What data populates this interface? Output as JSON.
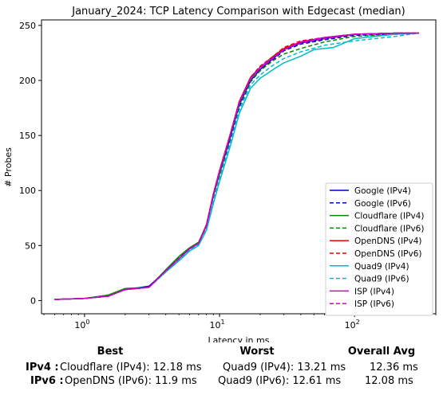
{
  "chart_data": {
    "type": "line",
    "title": "January_2024: TCP Latency Comparison with Edgecast (median)",
    "xlabel": "Latency in ms",
    "ylabel": "# Probes",
    "xscale": "log",
    "xlim": [
      0.48,
      400
    ],
    "ylim": [
      -12,
      255
    ],
    "yticks": [
      0,
      50,
      100,
      150,
      200,
      250
    ],
    "xticks": [
      {
        "value": 1,
        "base": "10",
        "exp": "0"
      },
      {
        "value": 10,
        "base": "10",
        "exp": "1"
      },
      {
        "value": 100,
        "base": "10",
        "exp": "2"
      }
    ],
    "grid": false,
    "legend_position": "lower right",
    "series": [
      {
        "name": "Google (IPv4)",
        "color": "#0000cc",
        "dash": false,
        "points": [
          [
            0.6,
            1
          ],
          [
            1.0,
            2
          ],
          [
            1.5,
            4
          ],
          [
            2.0,
            10
          ],
          [
            3.0,
            13
          ],
          [
            4.0,
            27
          ],
          [
            5.0,
            38
          ],
          [
            6.0,
            47
          ],
          [
            7.0,
            52
          ],
          [
            8.0,
            68
          ],
          [
            9.0,
            95
          ],
          [
            10.0,
            115
          ],
          [
            12.0,
            148
          ],
          [
            14.0,
            178
          ],
          [
            17.0,
            200
          ],
          [
            20.0,
            210
          ],
          [
            25.0,
            220
          ],
          [
            30.0,
            228
          ],
          [
            40.0,
            234
          ],
          [
            60.0,
            238
          ],
          [
            100.0,
            242
          ],
          [
            200.0,
            243
          ],
          [
            300.0,
            243
          ]
        ]
      },
      {
        "name": "Google (IPv6)",
        "color": "#0000cc",
        "dash": true,
        "points": [
          [
            0.6,
            1
          ],
          [
            1.0,
            2
          ],
          [
            1.5,
            4
          ],
          [
            2.0,
            10
          ],
          [
            3.0,
            12
          ],
          [
            4.0,
            26
          ],
          [
            5.0,
            37
          ],
          [
            6.0,
            46
          ],
          [
            7.0,
            51
          ],
          [
            8.0,
            67
          ],
          [
            9.0,
            93
          ],
          [
            10.0,
            113
          ],
          [
            12.0,
            146
          ],
          [
            14.0,
            176
          ],
          [
            17.0,
            199
          ],
          [
            20.0,
            209
          ],
          [
            25.0,
            219
          ],
          [
            30.0,
            227
          ],
          [
            40.0,
            233
          ],
          [
            60.0,
            237
          ],
          [
            100.0,
            241
          ],
          [
            200.0,
            242
          ],
          [
            300.0,
            243
          ]
        ]
      },
      {
        "name": "Cloudflare (IPv4)",
        "color": "#008800",
        "dash": false,
        "points": [
          [
            0.6,
            1
          ],
          [
            1.0,
            2
          ],
          [
            1.5,
            5
          ],
          [
            2.0,
            11
          ],
          [
            3.0,
            12
          ],
          [
            4.0,
            28
          ],
          [
            5.0,
            40
          ],
          [
            6.0,
            48
          ],
          [
            7.0,
            53
          ],
          [
            8.0,
            69
          ],
          [
            9.0,
            96
          ],
          [
            10.0,
            116
          ],
          [
            12.0,
            150
          ],
          [
            14.0,
            180
          ],
          [
            17.0,
            202
          ],
          [
            20.0,
            212
          ],
          [
            25.0,
            222
          ],
          [
            30.0,
            229
          ],
          [
            40.0,
            235
          ],
          [
            60.0,
            239
          ],
          [
            100.0,
            242
          ],
          [
            200.0,
            243
          ],
          [
            300.0,
            243
          ]
        ]
      },
      {
        "name": "Cloudflare (IPv6)",
        "color": "#008800",
        "dash": true,
        "points": [
          [
            0.6,
            1
          ],
          [
            1.0,
            2
          ],
          [
            1.5,
            5
          ],
          [
            2.0,
            10
          ],
          [
            3.0,
            12
          ],
          [
            4.0,
            27
          ],
          [
            5.0,
            39
          ],
          [
            6.0,
            47
          ],
          [
            7.0,
            52
          ],
          [
            8.0,
            68
          ],
          [
            9.0,
            95
          ],
          [
            10.0,
            115
          ],
          [
            12.0,
            149
          ],
          [
            14.0,
            178
          ],
          [
            17.0,
            200
          ],
          [
            20.0,
            209
          ],
          [
            25.0,
            218
          ],
          [
            30.0,
            224
          ],
          [
            40.0,
            229
          ],
          [
            60.0,
            235
          ],
          [
            100.0,
            240
          ],
          [
            200.0,
            242
          ],
          [
            300.0,
            243
          ]
        ]
      },
      {
        "name": "OpenDNS (IPv4)",
        "color": "#ee0000",
        "dash": false,
        "points": [
          [
            0.6,
            1
          ],
          [
            1.0,
            2
          ],
          [
            1.5,
            4
          ],
          [
            2.0,
            10
          ],
          [
            3.0,
            12
          ],
          [
            4.0,
            27
          ],
          [
            5.0,
            38
          ],
          [
            6.0,
            47
          ],
          [
            7.0,
            52
          ],
          [
            8.0,
            69
          ],
          [
            9.0,
            97
          ],
          [
            10.0,
            118
          ],
          [
            12.0,
            151
          ],
          [
            14.0,
            181
          ],
          [
            17.0,
            203
          ],
          [
            20.0,
            212
          ],
          [
            25.0,
            221
          ],
          [
            30.0,
            229
          ],
          [
            40.0,
            235
          ],
          [
            60.0,
            239
          ],
          [
            100.0,
            242
          ],
          [
            200.0,
            243
          ],
          [
            300.0,
            243
          ]
        ]
      },
      {
        "name": "OpenDNS (IPv6)",
        "color": "#ee0000",
        "dash": true,
        "points": [
          [
            0.6,
            1
          ],
          [
            1.0,
            2
          ],
          [
            1.5,
            4
          ],
          [
            2.0,
            10
          ],
          [
            3.0,
            12
          ],
          [
            4.0,
            27
          ],
          [
            5.0,
            38
          ],
          [
            6.0,
            47
          ],
          [
            7.0,
            52
          ],
          [
            8.0,
            69
          ],
          [
            9.0,
            97
          ],
          [
            10.0,
            118
          ],
          [
            12.0,
            151
          ],
          [
            14.0,
            181
          ],
          [
            17.0,
            203
          ],
          [
            20.0,
            213
          ],
          [
            25.0,
            222
          ],
          [
            30.0,
            230
          ],
          [
            40.0,
            236
          ],
          [
            60.0,
            239
          ],
          [
            100.0,
            242
          ],
          [
            200.0,
            243
          ],
          [
            300.0,
            243
          ]
        ]
      },
      {
        "name": "Quad9 (IPv4)",
        "color": "#00bbcc",
        "dash": false,
        "points": [
          [
            0.6,
            1
          ],
          [
            1.0,
            2
          ],
          [
            1.5,
            4
          ],
          [
            2.0,
            10
          ],
          [
            3.0,
            12
          ],
          [
            4.0,
            26
          ],
          [
            5.0,
            36
          ],
          [
            6.0,
            45
          ],
          [
            7.0,
            50
          ],
          [
            8.0,
            64
          ],
          [
            9.0,
            88
          ],
          [
            10.0,
            108
          ],
          [
            12.0,
            140
          ],
          [
            14.0,
            170
          ],
          [
            17.0,
            193
          ],
          [
            20.0,
            202
          ],
          [
            25.0,
            210
          ],
          [
            30.0,
            216
          ],
          [
            40.0,
            222
          ],
          [
            50.0,
            228
          ],
          [
            70.0,
            230
          ],
          [
            100.0,
            238
          ],
          [
            200.0,
            242
          ],
          [
            300.0,
            243
          ]
        ]
      },
      {
        "name": "Quad9 (IPv6)",
        "color": "#00bbcc",
        "dash": true,
        "points": [
          [
            0.6,
            1
          ],
          [
            1.0,
            2
          ],
          [
            1.5,
            4
          ],
          [
            2.0,
            10
          ],
          [
            3.0,
            12
          ],
          [
            4.0,
            26
          ],
          [
            5.0,
            37
          ],
          [
            6.0,
            46
          ],
          [
            7.0,
            51
          ],
          [
            8.0,
            66
          ],
          [
            9.0,
            91
          ],
          [
            10.0,
            111
          ],
          [
            12.0,
            143
          ],
          [
            14.0,
            173
          ],
          [
            17.0,
            196
          ],
          [
            20.0,
            205
          ],
          [
            25.0,
            214
          ],
          [
            30.0,
            220
          ],
          [
            40.0,
            226
          ],
          [
            60.0,
            232
          ],
          [
            100.0,
            236
          ],
          [
            200.0,
            240
          ],
          [
            300.0,
            243
          ]
        ]
      },
      {
        "name": "ISP (IPv4)",
        "color": "#cc00cc",
        "dash": false,
        "points": [
          [
            0.6,
            1
          ],
          [
            1.0,
            2
          ],
          [
            1.5,
            4
          ],
          [
            2.0,
            10
          ],
          [
            3.0,
            12
          ],
          [
            4.0,
            27
          ],
          [
            5.0,
            38
          ],
          [
            6.0,
            47
          ],
          [
            7.0,
            52
          ],
          [
            8.0,
            68
          ],
          [
            9.0,
            96
          ],
          [
            10.0,
            117
          ],
          [
            12.0,
            150
          ],
          [
            14.0,
            180
          ],
          [
            17.0,
            202
          ],
          [
            20.0,
            212
          ],
          [
            25.0,
            221
          ],
          [
            30.0,
            228
          ],
          [
            40.0,
            235
          ],
          [
            60.0,
            239
          ],
          [
            100.0,
            242
          ],
          [
            200.0,
            243
          ],
          [
            300.0,
            243
          ]
        ]
      },
      {
        "name": "ISP (IPv6)",
        "color": "#cc00cc",
        "dash": true,
        "points": [
          [
            0.6,
            1
          ],
          [
            1.0,
            2
          ],
          [
            1.5,
            4
          ],
          [
            2.0,
            10
          ],
          [
            3.0,
            12
          ],
          [
            4.0,
            27
          ],
          [
            5.0,
            38
          ],
          [
            6.0,
            47
          ],
          [
            7.0,
            52
          ],
          [
            8.0,
            68
          ],
          [
            9.0,
            96
          ],
          [
            10.0,
            117
          ],
          [
            12.0,
            150
          ],
          [
            14.0,
            180
          ],
          [
            17.0,
            202
          ],
          [
            20.0,
            211
          ],
          [
            25.0,
            220
          ],
          [
            30.0,
            228
          ],
          [
            40.0,
            234
          ],
          [
            60.0,
            238
          ],
          [
            100.0,
            242
          ],
          [
            200.0,
            243
          ],
          [
            300.0,
            243
          ]
        ]
      }
    ]
  },
  "summary": {
    "headers": {
      "best": "Best",
      "worst": "Worst",
      "avg": "Overall Avg"
    },
    "rows": [
      {
        "label": "IPv4 :",
        "best": "Cloudflare (IPv4): 12.18 ms",
        "worst": "Quad9 (IPv4): 13.21 ms",
        "avg": "12.36 ms"
      },
      {
        "label": "IPv6 :",
        "best": "OpenDNS (IPv6): 11.9 ms",
        "worst": "Quad9 (IPv6): 12.61 ms",
        "avg": "12.08 ms"
      }
    ]
  }
}
